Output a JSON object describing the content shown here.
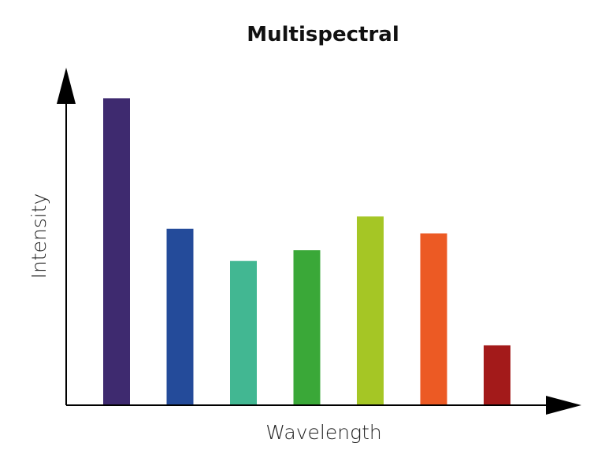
{
  "chart_data": {
    "type": "bar",
    "title": "Multispectral",
    "xlabel": "Wavelength",
    "ylabel": "Intensity",
    "values": [
      100,
      57.5,
      47,
      50.5,
      61.5,
      56,
      19.5
    ],
    "colors": [
      "#3e2a6f",
      "#244b9a",
      "#42b792",
      "#3aa838",
      "#a5c625",
      "#ec5a24",
      "#a31a1a"
    ],
    "ylim": [
      0,
      100
    ],
    "grid": false,
    "legend": "none"
  }
}
